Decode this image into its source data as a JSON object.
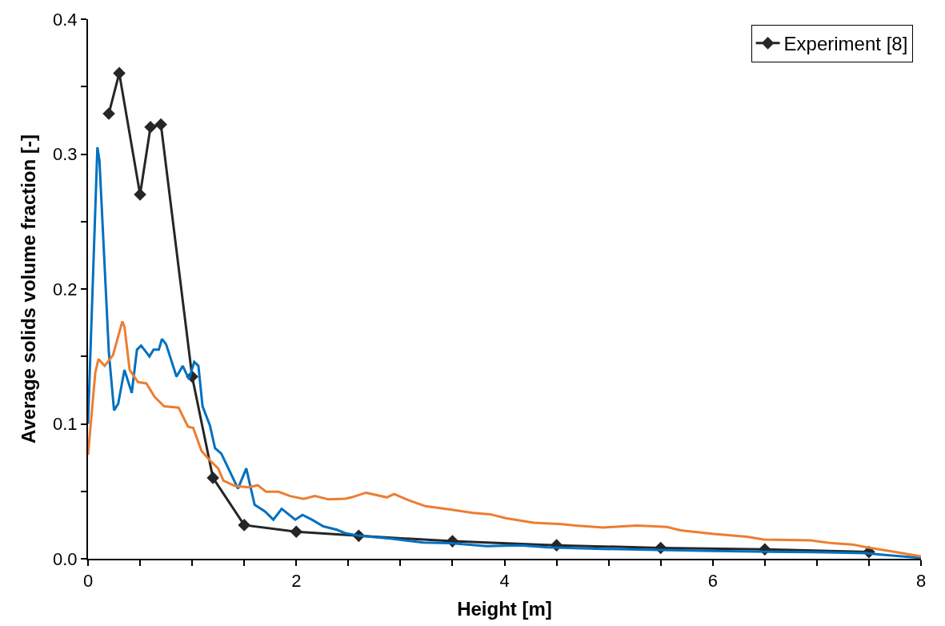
{
  "chart_data": {
    "type": "line",
    "xlabel": "Height [m]",
    "ylabel": "Average solids volume fraction [-]",
    "xlim": [
      0,
      8
    ],
    "ylim": [
      0,
      0.4
    ],
    "xticks": [
      0,
      {
        "value": 0.5,
        "label": null
      },
      {
        "value": 1,
        "label": null
      },
      {
        "value": 1.5,
        "label": null
      },
      2,
      {
        "value": 2.5,
        "label": null
      },
      {
        "value": 3,
        "label": null
      },
      {
        "value": 3.5,
        "label": null
      },
      4,
      {
        "value": 4.5,
        "label": null
      },
      {
        "value": 5,
        "label": null
      },
      {
        "value": 5.5,
        "label": null
      },
      6,
      {
        "value": 6.5,
        "label": null
      },
      {
        "value": 7,
        "label": null
      },
      {
        "value": 7.5,
        "label": null
      },
      8
    ],
    "yticks": [
      {
        "value": 0,
        "label": "0.0"
      },
      {
        "value": 0.05,
        "label": null
      },
      {
        "value": 0.1,
        "label": "0.1"
      },
      {
        "value": 0.15,
        "label": null
      },
      {
        "value": 0.2,
        "label": "0.2"
      },
      {
        "value": 0.25,
        "label": null
      },
      {
        "value": 0.3,
        "label": "0.3"
      },
      {
        "value": 0.35,
        "label": null
      },
      {
        "value": 0.4,
        "label": "0.4"
      }
    ],
    "legend": "top right",
    "series": [
      {
        "name": "Experiment [8]",
        "color": "#262626",
        "marker": "diamond",
        "x": [
          0.2,
          0.3,
          0.5,
          0.6,
          0.7,
          1.0,
          1.2,
          1.5,
          2,
          2.6,
          3.5,
          4.5,
          5.5,
          6.5,
          7.5
        ],
        "values": [
          0.33,
          0.36,
          0.27,
          0.32,
          0.322,
          0.135,
          0.06,
          0.025,
          0.02,
          0.017,
          0.013,
          0.01,
          0.008,
          0.007,
          0.005
        ]
      },
      {
        "color": "#0070c0",
        "x": [
          0,
          0.09,
          0.11,
          0.2,
          0.25,
          0.29,
          0.35,
          0.42,
          0.47,
          0.51,
          0.56,
          0.59,
          0.63,
          0.68,
          0.71,
          0.75,
          0.85,
          0.91,
          0.97,
          1.02,
          1.06,
          1.1,
          1.17,
          1.22,
          1.28,
          1.36,
          1.44,
          1.52,
          1.6,
          1.7,
          1.78,
          1.86,
          1.99,
          2.06,
          2.15,
          2.26,
          2.39,
          2.47,
          2.61,
          2.92,
          3.22,
          3.48,
          3.83,
          4.15,
          4.42,
          4.95,
          5.48,
          6.01,
          6.54,
          7.08,
          7.47,
          7.61,
          8.0
        ],
        "values": [
          0.1,
          0.305,
          0.295,
          0.153,
          0.11,
          0.115,
          0.14,
          0.123,
          0.155,
          0.158,
          0.153,
          0.15,
          0.155,
          0.155,
          0.163,
          0.159,
          0.135,
          0.143,
          0.133,
          0.146,
          0.143,
          0.113,
          0.099,
          0.082,
          0.078,
          0.065,
          0.052,
          0.067,
          0.04,
          0.035,
          0.029,
          0.037,
          0.029,
          0.0325,
          0.029,
          0.024,
          0.0215,
          0.019,
          0.017,
          0.0148,
          0.012,
          0.0115,
          0.0094,
          0.01,
          0.0085,
          0.0073,
          0.0065,
          0.0058,
          0.0052,
          0.0048,
          0.0042,
          0.0031,
          0.0006
        ]
      },
      {
        "color": "#ed7d31",
        "x": [
          0,
          0.07,
          0.1,
          0.16,
          0.24,
          0.33,
          0.35,
          0.4,
          0.48,
          0.56,
          0.64,
          0.73,
          0.87,
          0.96,
          1.01,
          1.09,
          1.17,
          1.25,
          1.3,
          1.41,
          1.54,
          1.63,
          1.71,
          1.83,
          1.94,
          2.07,
          2.18,
          2.31,
          2.47,
          2.53,
          2.67,
          2.87,
          2.94,
          3.08,
          3.24,
          3.48,
          3.7,
          3.86,
          4.02,
          4.28,
          4.55,
          4.68,
          4.95,
          5.27,
          5.56,
          5.69,
          6.01,
          6.33,
          6.49,
          6.94,
          7.15,
          7.34,
          7.47,
          7.74,
          8.0
        ],
        "values": [
          0.077,
          0.138,
          0.148,
          0.143,
          0.151,
          0.176,
          0.172,
          0.14,
          0.131,
          0.13,
          0.12,
          0.113,
          0.112,
          0.098,
          0.097,
          0.08,
          0.073,
          0.067,
          0.058,
          0.054,
          0.053,
          0.0545,
          0.0497,
          0.0497,
          0.0465,
          0.0444,
          0.0465,
          0.044,
          0.0445,
          0.0455,
          0.049,
          0.0455,
          0.048,
          0.0434,
          0.039,
          0.0365,
          0.034,
          0.033,
          0.03,
          0.0267,
          0.0257,
          0.0246,
          0.0232,
          0.0246,
          0.0236,
          0.0211,
          0.0184,
          0.0163,
          0.0142,
          0.0136,
          0.0115,
          0.0106,
          0.0086,
          0.0052,
          0.0017
        ]
      }
    ]
  }
}
